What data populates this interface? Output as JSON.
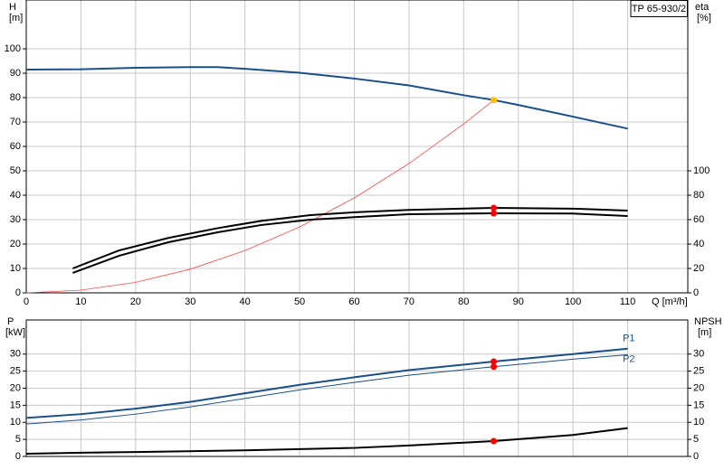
{
  "chart_data": [
    {
      "type": "line",
      "title": "TP 65-930/2",
      "ylabel": "H",
      "ylabel_unit": "[m]",
      "y2label": "eta",
      "y2label_unit": "[%]",
      "xlabel": "Q [m³/h]",
      "xlim": [
        0,
        121
      ],
      "xticks": [
        0,
        10,
        20,
        30,
        40,
        50,
        60,
        70,
        80,
        90,
        100,
        110
      ],
      "show_xtick_labels": true,
      "ylim": [
        0,
        120
      ],
      "yticks": [
        0,
        10,
        20,
        30,
        40,
        50,
        60,
        70,
        80,
        90,
        100
      ],
      "y2lim": [
        0,
        240
      ],
      "y2ticks": [
        0,
        20,
        40,
        60,
        80,
        100
      ],
      "grid": true,
      "series": [
        {
          "color": "#1a4f8a",
          "width": 2,
          "x": [
            0,
            10,
            20,
            30,
            35,
            40,
            50,
            60,
            70,
            80,
            85.5,
            90,
            100,
            110
          ],
          "values": [
            91.5,
            91.6,
            92.2,
            92.5,
            92.5,
            91.8,
            90.2,
            87.8,
            85,
            81,
            79,
            77,
            72.2,
            67.3
          ]
        },
        {
          "color": "#ff4a4a",
          "width": 0.8,
          "x": [
            0,
            10,
            20,
            30,
            40,
            50,
            60,
            70,
            80,
            85.5
          ],
          "values": [
            0,
            1.1,
            4.3,
            9.7,
            17.3,
            27,
            38.9,
            53,
            69.2,
            79
          ]
        },
        {
          "color": "#000000",
          "width": 2,
          "axis": "y2",
          "x": [
            8.5,
            17,
            26,
            35,
            43,
            52,
            60,
            70,
            85.5,
            100,
            110
          ],
          "values": [
            20,
            34.8,
            45,
            53,
            59,
            63.7,
            66,
            68,
            69.6,
            69,
            67.4
          ]
        },
        {
          "color": "#000000",
          "width": 2,
          "axis": "y2",
          "x": [
            8.5,
            17,
            26,
            35,
            43,
            52,
            60,
            70,
            85.5,
            100,
            110
          ],
          "values": [
            16.3,
            30.4,
            41.5,
            49.6,
            55.6,
            60,
            62,
            64.4,
            65.2,
            65,
            63
          ]
        }
      ],
      "points": [
        {
          "x": 85.5,
          "y": 79,
          "color": "#ffc000"
        },
        {
          "x": 85.5,
          "y": 69.6,
          "color": "#ff0000",
          "axis": "y2"
        },
        {
          "x": 85.5,
          "y": 65.2,
          "color": "#ff0000",
          "axis": "y2"
        }
      ]
    },
    {
      "type": "line",
      "ylabel": "P",
      "ylabel_unit": "[kW]",
      "y2label": "NPSH",
      "y2label_unit": "[m]",
      "xlim": [
        0,
        121
      ],
      "xticks": [
        0,
        10,
        20,
        30,
        40,
        50,
        60,
        70,
        80,
        90,
        100,
        110
      ],
      "show_xtick_labels": false,
      "ylim": [
        0,
        40
      ],
      "yticks": [
        0,
        5,
        10,
        15,
        20,
        25,
        30
      ],
      "y2lim": [
        0,
        40
      ],
      "y2ticks": [
        0,
        5,
        10,
        15,
        20,
        25,
        30
      ],
      "grid": true,
      "series": [
        {
          "name": "P1",
          "color": "#1a4f8a",
          "width": 2,
          "x": [
            0,
            10,
            20,
            30,
            40,
            50,
            60,
            70,
            85.5,
            100,
            110
          ],
          "values": [
            11.3,
            12.4,
            14,
            16,
            18.5,
            21,
            23.2,
            25.3,
            27.8,
            30,
            31.6
          ]
        },
        {
          "name": "P2",
          "color": "#1a4f8a",
          "width": 1,
          "x": [
            0,
            10,
            20,
            30,
            40,
            50,
            60,
            70,
            85.5,
            100,
            110
          ],
          "values": [
            9.5,
            10.7,
            12.4,
            14.5,
            17,
            19.5,
            21.7,
            23.8,
            26.3,
            28.5,
            29.8
          ]
        },
        {
          "color": "#000000",
          "width": 2,
          "axis": "y2",
          "x": [
            0,
            10,
            20,
            40,
            60,
            70,
            85.5,
            100,
            110
          ],
          "values": [
            0.8,
            1.1,
            1.3,
            1.8,
            2.5,
            3.2,
            4.5,
            6.3,
            8.3
          ]
        }
      ],
      "points": [
        {
          "x": 85.5,
          "y": 27.8,
          "color": "#ff0000"
        },
        {
          "x": 85.5,
          "y": 26.3,
          "color": "#ff0000"
        },
        {
          "x": 85.5,
          "y": 4.5,
          "color": "#ff0000",
          "axis": "y2"
        }
      ]
    }
  ]
}
